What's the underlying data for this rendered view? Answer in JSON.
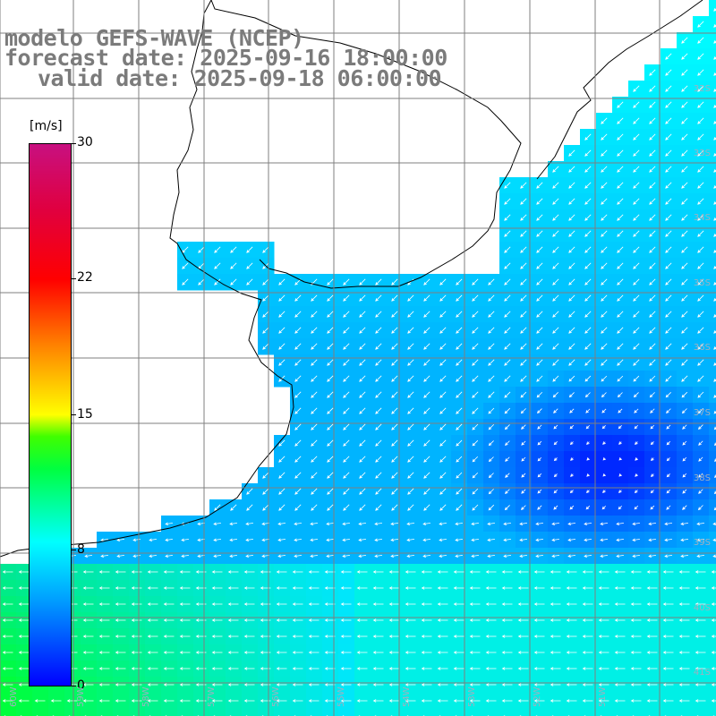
{
  "title": {
    "line1": "modelo GEFS-WAVE (NCEP)",
    "line2": "forecast date: 2025-09-16 18:00:00",
    "line3": "valid date: 2025-09-18 06:00:00"
  },
  "colorbar": {
    "unit": "[m/s]",
    "ticks": [
      "30",
      "22",
      "15",
      "8",
      "0"
    ],
    "range": [
      0,
      30
    ]
  },
  "lat_labels": [
    "32S",
    "33S",
    "34S",
    "35S",
    "36S",
    "37S",
    "38S",
    "39S",
    "40S",
    "41S"
  ],
  "lon_labels": [
    "60W",
    "59W",
    "58W",
    "57W",
    "56W",
    "55W",
    "54W",
    "53W",
    "52W",
    "51W"
  ],
  "colors": {
    "land": "#ffffff",
    "coast": "#000000",
    "grid": "#7f7f7f",
    "arrow": "#ffffff"
  }
}
